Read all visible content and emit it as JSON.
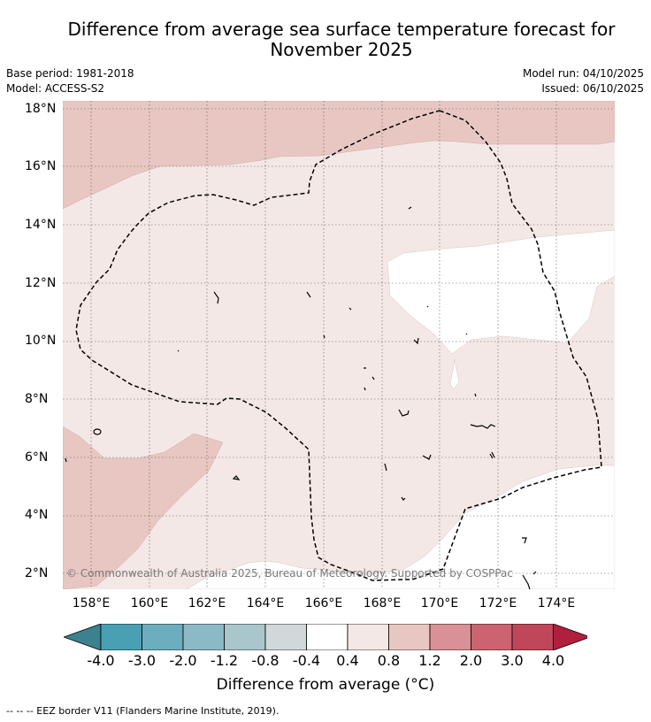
{
  "title_line1": "Difference from average sea surface temperature forecast for",
  "title_line2": "November 2025",
  "base_period": "Base period: 1981-2018",
  "model": "Model: ACCESS-S2",
  "model_run": "Model run: 04/10/2025",
  "issued": "Issued: 06/10/2025",
  "copyright": "© Commonwealth of Australia 2025, Bureau of Meteorology. Supported by COSPPac",
  "legend_label": "Difference from average (°C)",
  "eez_legend": "-- -- -- EEZ border V11 (Flanders Marine Institute, 2019).",
  "lat_labels": [
    "18°N",
    "16°N",
    "14°N",
    "12°N",
    "10°N",
    "8°N",
    "6°N",
    "4°N",
    "2°N"
  ],
  "lon_labels": [
    "158°E",
    "160°E",
    "162°E",
    "164°E",
    "166°E",
    "168°E",
    "170°E",
    "172°E",
    "174°E"
  ],
  "colorbar": {
    "ticks": [
      "-4.0",
      "-3.0",
      "-2.0",
      "-1.2",
      "-0.8",
      "-0.4",
      "0.4",
      "0.8",
      "1.2",
      "2.0",
      "3.0",
      "4.0"
    ],
    "colors": [
      "#3b8190",
      "#49a0b2",
      "#6caebe",
      "#8cb9c6",
      "#a9c6cc",
      "#d0d8da",
      "#ffffff",
      "#f4e8e7",
      "#e8c7c3",
      "#d99096",
      "#cb6470",
      "#c0475a",
      "#b01f3d"
    ]
  },
  "map_data": {
    "lon_range": [
      157,
      176
    ],
    "lat_range": [
      1.5,
      18.3
    ],
    "categories": [
      "0.4 to 0.8",
      "0.8 to 1.2",
      "-0.4 to 0.4"
    ]
  }
}
